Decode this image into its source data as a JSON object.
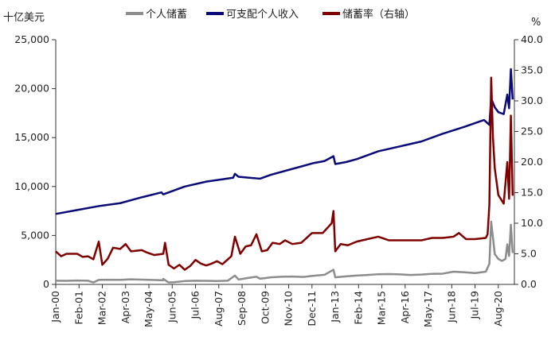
{
  "chart_data": {
    "type": "line",
    "left_unit": "十亿美元",
    "right_unit": "%",
    "y_left": {
      "min": 0,
      "max": 25000,
      "ticks": [
        0,
        5000,
        10000,
        15000,
        20000,
        25000
      ],
      "tick_labels": [
        "0",
        "5,000",
        "10,000",
        "15,000",
        "20,000",
        "25,000"
      ]
    },
    "y_right": {
      "min": 0,
      "max": 40,
      "ticks": [
        0,
        5,
        10,
        15,
        20,
        25,
        30,
        35,
        40
      ],
      "tick_labels": [
        "0.0",
        "5.0",
        "10.0",
        "15.0",
        "20.0",
        "25.0",
        "30.0",
        "35.0",
        "40.0"
      ]
    },
    "x_tick_labels": [
      "Jan-00",
      "Feb-01",
      "Mar-02",
      "Apr-03",
      "May-04",
      "Jun-05",
      "Jul-06",
      "Aug-07",
      "Sep-08",
      "Oct-09",
      "Nov-10",
      "Dec-11",
      "Jan-13",
      "Feb-14",
      "Mar-15",
      "Apr-16",
      "May-17",
      "Jun-18",
      "Jul-19",
      "Aug-20"
    ],
    "legend_position": "top",
    "series": [
      {
        "name": "个人储蓄",
        "axis": "left",
        "color": "#8c8c8c",
        "points": [
          [
            "2000-01",
            380
          ],
          [
            "2000-07",
            360
          ],
          [
            "2001-01",
            400
          ],
          [
            "2001-07",
            380
          ],
          [
            "2001-10",
            200
          ],
          [
            "2002-01",
            460
          ],
          [
            "2002-07",
            480
          ],
          [
            "2003-01",
            470
          ],
          [
            "2003-07",
            520
          ],
          [
            "2004-01",
            490
          ],
          [
            "2004-07",
            460
          ],
          [
            "2005-01",
            420
          ],
          [
            "2005-01",
            560
          ],
          [
            "2005-04",
            200
          ],
          [
            "2005-07",
            220
          ],
          [
            "2006-01",
            340
          ],
          [
            "2006-07",
            380
          ],
          [
            "2007-01",
            360
          ],
          [
            "2007-07",
            340
          ],
          [
            "2008-01",
            380
          ],
          [
            "2008-05",
            900
          ],
          [
            "2008-07",
            500
          ],
          [
            "2009-01",
            680
          ],
          [
            "2009-05",
            780
          ],
          [
            "2009-07",
            580
          ],
          [
            "2010-01",
            720
          ],
          [
            "2010-07",
            780
          ],
          [
            "2011-01",
            800
          ],
          [
            "2011-07",
            760
          ],
          [
            "2012-01",
            880
          ],
          [
            "2012-07",
            980
          ],
          [
            "2012-12",
            1500
          ],
          [
            "2013-01",
            720
          ],
          [
            "2013-07",
            820
          ],
          [
            "2014-01",
            900
          ],
          [
            "2014-07",
            960
          ],
          [
            "2015-01",
            1040
          ],
          [
            "2015-07",
            1060
          ],
          [
            "2016-01",
            1020
          ],
          [
            "2016-07",
            960
          ],
          [
            "2017-01",
            1000
          ],
          [
            "2017-07",
            1080
          ],
          [
            "2018-01",
            1100
          ],
          [
            "2018-07",
            1300
          ],
          [
            "2019-01",
            1240
          ],
          [
            "2019-07",
            1160
          ],
          [
            "2020-01",
            1300
          ],
          [
            "2020-03",
            2100
          ],
          [
            "2020-04",
            6400
          ],
          [
            "2020-05",
            4800
          ],
          [
            "2020-06",
            3100
          ],
          [
            "2020-08",
            2600
          ],
          [
            "2020-10",
            2400
          ],
          [
            "2020-12",
            2600
          ],
          [
            "2021-01",
            4100
          ],
          [
            "2021-02",
            2900
          ],
          [
            "2021-03",
            6100
          ],
          [
            "2021-04",
            3200
          ]
        ]
      },
      {
        "name": "可支配个人收入",
        "axis": "left",
        "color": "#0a0a78",
        "points": [
          [
            "2000-01",
            7200
          ],
          [
            "2001-01",
            7600
          ],
          [
            "2002-01",
            8000
          ],
          [
            "2003-01",
            8300
          ],
          [
            "2004-01",
            8900
          ],
          [
            "2004-12",
            9400
          ],
          [
            "2005-01",
            9200
          ],
          [
            "2006-01",
            10000
          ],
          [
            "2007-01",
            10500
          ],
          [
            "2008-04",
            10900
          ],
          [
            "2008-05",
            11300
          ],
          [
            "2008-07",
            11000
          ],
          [
            "2009-01",
            10900
          ],
          [
            "2009-07",
            10800
          ],
          [
            "2010-01",
            11200
          ],
          [
            "2011-01",
            11800
          ],
          [
            "2012-01",
            12400
          ],
          [
            "2012-07",
            12600
          ],
          [
            "2012-12",
            13100
          ],
          [
            "2013-01",
            12300
          ],
          [
            "2013-07",
            12500
          ],
          [
            "2014-01",
            12800
          ],
          [
            "2015-01",
            13600
          ],
          [
            "2016-01",
            14100
          ],
          [
            "2017-01",
            14600
          ],
          [
            "2018-01",
            15400
          ],
          [
            "2019-01",
            16100
          ],
          [
            "2019-12",
            16800
          ],
          [
            "2020-03",
            16300
          ],
          [
            "2020-04",
            19000
          ],
          [
            "2020-06",
            18100
          ],
          [
            "2020-08",
            17600
          ],
          [
            "2020-11",
            17400
          ],
          [
            "2021-01",
            19400
          ],
          [
            "2021-02",
            18000
          ],
          [
            "2021-03",
            22000
          ],
          [
            "2021-04",
            18900
          ]
        ]
      },
      {
        "name": "储蓄率（右轴）",
        "axis": "right",
        "color": "#800000",
        "points": [
          [
            "2000-01",
            5.4
          ],
          [
            "2000-04",
            4.6
          ],
          [
            "2000-07",
            5.0
          ],
          [
            "2001-01",
            5.0
          ],
          [
            "2001-04",
            4.5
          ],
          [
            "2001-07",
            4.6
          ],
          [
            "2001-10",
            4.1
          ],
          [
            "2002-01",
            7.0
          ],
          [
            "2002-03",
            3.2
          ],
          [
            "2002-06",
            4.2
          ],
          [
            "2002-09",
            6.0
          ],
          [
            "2003-01",
            5.8
          ],
          [
            "2003-04",
            6.6
          ],
          [
            "2003-07",
            5.4
          ],
          [
            "2004-01",
            5.6
          ],
          [
            "2004-04",
            5.2
          ],
          [
            "2004-08",
            4.8
          ],
          [
            "2005-01",
            5.0
          ],
          [
            "2005-02",
            6.8
          ],
          [
            "2005-04",
            3.2
          ],
          [
            "2005-07",
            2.6
          ],
          [
            "2005-10",
            3.2
          ],
          [
            "2006-01",
            2.4
          ],
          [
            "2006-04",
            3.0
          ],
          [
            "2006-07",
            4.0
          ],
          [
            "2006-10",
            3.4
          ],
          [
            "2007-01",
            3.1
          ],
          [
            "2007-04",
            3.4
          ],
          [
            "2007-07",
            3.8
          ],
          [
            "2007-10",
            3.3
          ],
          [
            "2008-03",
            4.6
          ],
          [
            "2008-05",
            7.8
          ],
          [
            "2008-08",
            5.0
          ],
          [
            "2008-11",
            6.2
          ],
          [
            "2009-02",
            6.4
          ],
          [
            "2009-05",
            8.2
          ],
          [
            "2009-08",
            5.4
          ],
          [
            "2009-11",
            5.6
          ],
          [
            "2010-02",
            6.8
          ],
          [
            "2010-06",
            6.6
          ],
          [
            "2010-09",
            7.2
          ],
          [
            "2011-01",
            6.6
          ],
          [
            "2011-06",
            6.8
          ],
          [
            "2011-12",
            8.4
          ],
          [
            "2012-06",
            8.4
          ],
          [
            "2012-11",
            10.0
          ],
          [
            "2012-12",
            12.0
          ],
          [
            "2013-01",
            5.4
          ],
          [
            "2013-04",
            6.6
          ],
          [
            "2013-08",
            6.4
          ],
          [
            "2014-01",
            7.0
          ],
          [
            "2014-07",
            7.4
          ],
          [
            "2015-01",
            7.8
          ],
          [
            "2015-07",
            7.2
          ],
          [
            "2016-01",
            7.2
          ],
          [
            "2016-07",
            7.2
          ],
          [
            "2017-01",
            7.2
          ],
          [
            "2017-07",
            7.6
          ],
          [
            "2018-01",
            7.6
          ],
          [
            "2018-07",
            7.8
          ],
          [
            "2018-10",
            8.4
          ],
          [
            "2019-02",
            7.4
          ],
          [
            "2019-07",
            7.4
          ],
          [
            "2020-01",
            7.6
          ],
          [
            "2020-02",
            8.2
          ],
          [
            "2020-03",
            13.0
          ],
          [
            "2020-04",
            33.8
          ],
          [
            "2020-05",
            24.0
          ],
          [
            "2020-06",
            19.0
          ],
          [
            "2020-08",
            14.6
          ],
          [
            "2020-11",
            13.2
          ],
          [
            "2021-01",
            20.0
          ],
          [
            "2021-02",
            14.0
          ],
          [
            "2021-03",
            27.6
          ],
          [
            "2021-04",
            14.5
          ]
        ]
      }
    ]
  }
}
